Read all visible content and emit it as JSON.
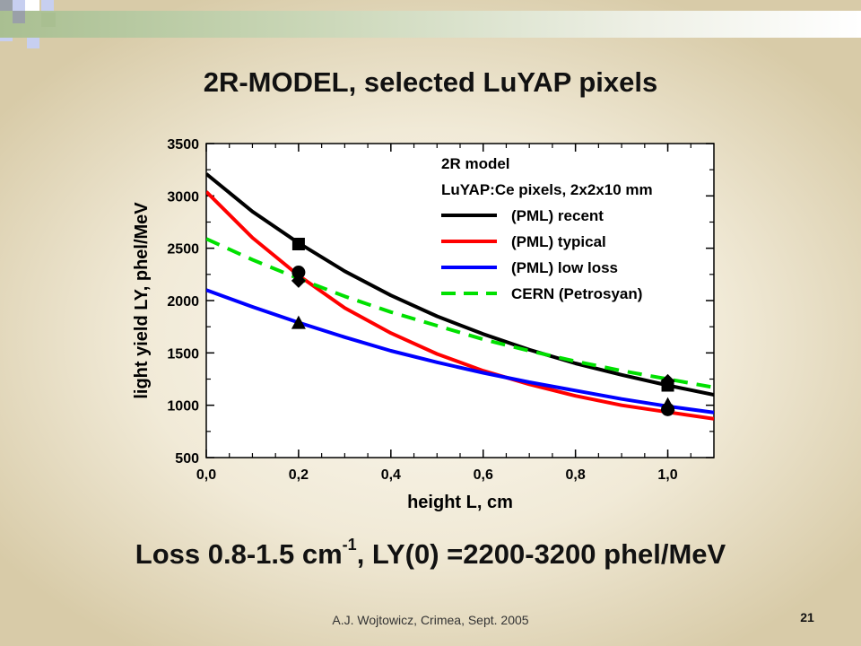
{
  "slide": {
    "title": "2R-MODEL, selected LuYAP pixels",
    "subtitle_prefix": "Loss 0.8-1.5 cm",
    "subtitle_exponent": "-1",
    "subtitle_suffix": ", LY(0) =2200-3200 phel/MeV",
    "footer_author": "A.J. Wojtowicz, Crimea, Sept. 2005",
    "page_number": "21",
    "accent_colors": {
      "green": "#a9bf91",
      "blue": "#c7cff0",
      "gray": "#9aa0a8"
    }
  },
  "chart_data": {
    "type": "line",
    "xlabel": "height L, cm",
    "ylabel": "light yield LY, phel/MeV",
    "xlim": [
      0,
      1.1
    ],
    "ylim": [
      500,
      3500
    ],
    "x_ticks": [
      "0,0",
      "0,2",
      "0,4",
      "0,6",
      "0,8",
      "1,0"
    ],
    "x_tick_values": [
      0,
      0.2,
      0.4,
      0.6,
      0.8,
      1.0
    ],
    "y_ticks": [
      500,
      1000,
      1500,
      2000,
      2500,
      3000,
      3500
    ],
    "legend_lines": [
      "2R model",
      "LuYAP:Ce pixels, 2x2x10 mm"
    ],
    "legend_position": "top-right",
    "grid": false,
    "series": [
      {
        "name": "(PML) recent",
        "color": "#000000",
        "dash": false,
        "x": [
          0,
          0.1,
          0.2,
          0.3,
          0.4,
          0.5,
          0.6,
          0.7,
          0.8,
          0.9,
          1.0,
          1.1
        ],
        "y": [
          3210,
          2850,
          2550,
          2280,
          2050,
          1850,
          1680,
          1530,
          1400,
          1290,
          1190,
          1100
        ]
      },
      {
        "name": "(PML) typical",
        "color": "#ff0000",
        "dash": false,
        "x": [
          0,
          0.1,
          0.2,
          0.3,
          0.4,
          0.5,
          0.6,
          0.7,
          0.8,
          0.9,
          1.0,
          1.1
        ],
        "y": [
          3040,
          2600,
          2240,
          1930,
          1690,
          1490,
          1330,
          1200,
          1090,
          1000,
          935,
          870
        ]
      },
      {
        "name": "(PML) low loss",
        "color": "#0000ff",
        "dash": false,
        "x": [
          0,
          0.1,
          0.2,
          0.3,
          0.4,
          0.5,
          0.6,
          0.7,
          0.8,
          0.9,
          1.0,
          1.1
        ],
        "y": [
          2100,
          1940,
          1790,
          1650,
          1520,
          1410,
          1310,
          1220,
          1140,
          1060,
          990,
          930
        ]
      },
      {
        "name": "CERN (Petrosyan)",
        "color": "#00e000",
        "dash": true,
        "x": [
          0,
          0.1,
          0.2,
          0.3,
          0.4,
          0.5,
          0.6,
          0.7,
          0.8,
          0.9,
          1.0,
          1.1
        ],
        "y": [
          2590,
          2390,
          2210,
          2040,
          1890,
          1760,
          1630,
          1520,
          1420,
          1330,
          1250,
          1170
        ]
      }
    ],
    "markers": [
      {
        "shape": "square",
        "x": 0.2,
        "y": 2540
      },
      {
        "shape": "circle",
        "x": 0.2,
        "y": 2270
      },
      {
        "shape": "diamond",
        "x": 0.2,
        "y": 2190
      },
      {
        "shape": "triangle",
        "x": 0.2,
        "y": 1780
      },
      {
        "shape": "diamond",
        "x": 1.0,
        "y": 1230
      },
      {
        "shape": "square",
        "x": 1.0,
        "y": 1190
      },
      {
        "shape": "triangle",
        "x": 1.0,
        "y": 1000
      },
      {
        "shape": "circle",
        "x": 1.0,
        "y": 960
      }
    ]
  }
}
